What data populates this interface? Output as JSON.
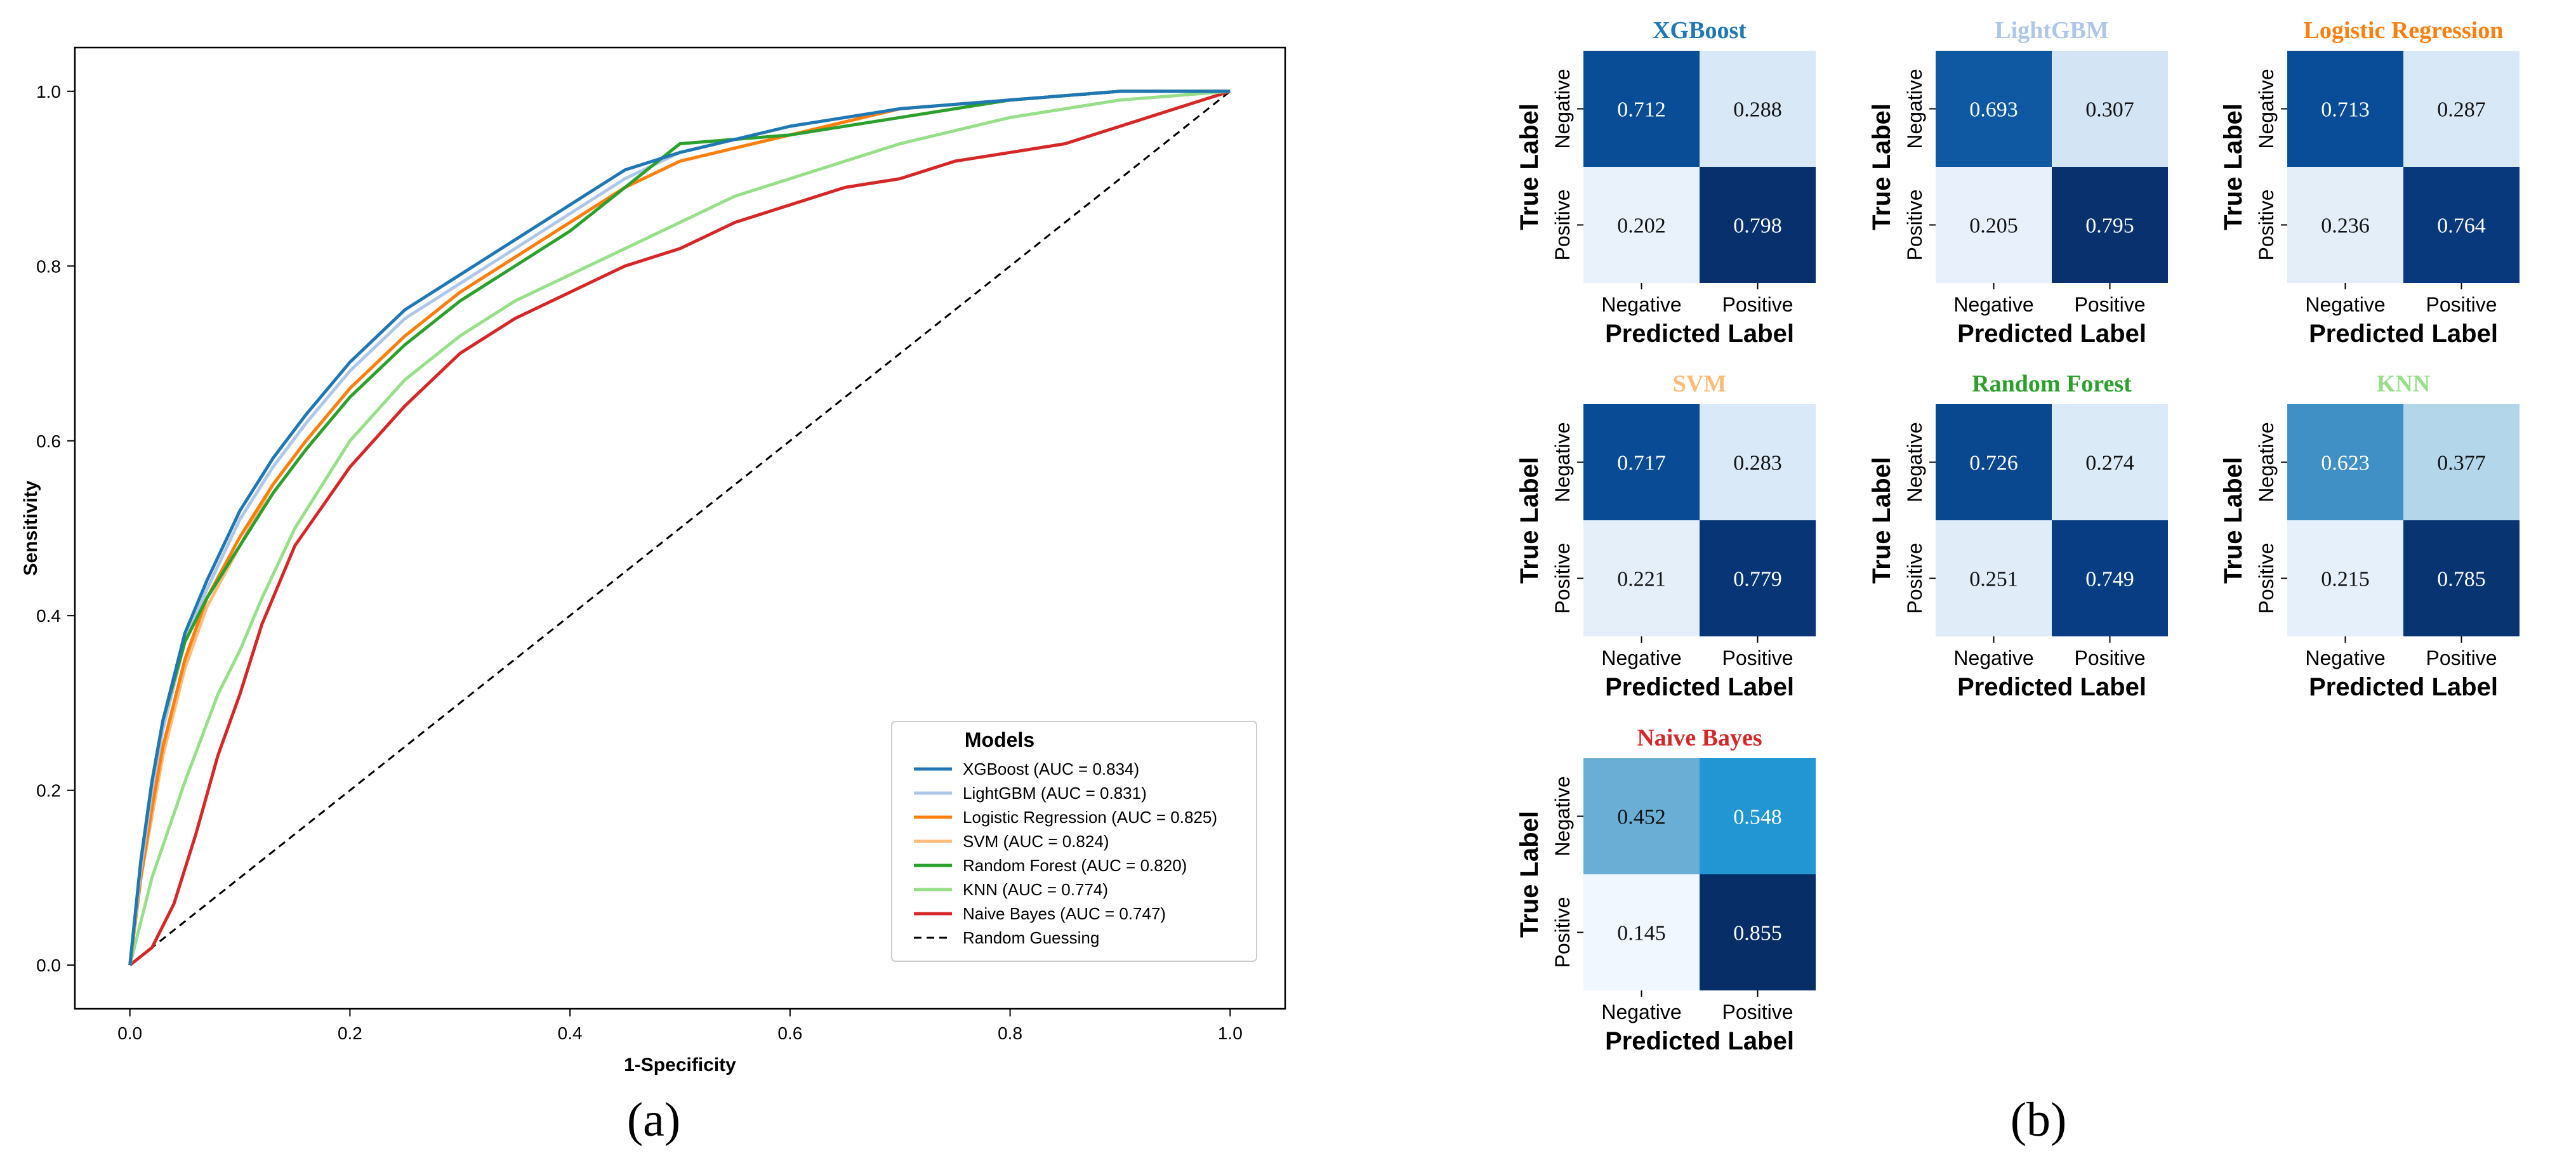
{
  "chart_data": [
    {
      "type": "line",
      "panel_label": "(a)",
      "title": "",
      "xlabel": "1-Specificity",
      "ylabel": "Sensitivity",
      "xlim": [
        -0.05,
        1.05
      ],
      "ylim": [
        -0.05,
        1.05
      ],
      "xticks": [
        "0.0",
        "0.2",
        "0.4",
        "0.6",
        "0.8",
        "1.0"
      ],
      "yticks": [
        "0.0",
        "0.2",
        "0.4",
        "0.6",
        "0.8",
        "1.0"
      ],
      "grid": false,
      "legend": {
        "title": "Models",
        "placement": "lower-right",
        "entries": [
          "XGBoost (AUC = 0.834)",
          "LightGBM (AUC = 0.831)",
          "Logistic Regression (AUC = 0.825)",
          "SVM (AUC = 0.824)",
          "Random Forest (AUC = 0.820)",
          "KNN (AUC = 0.774)",
          "Naive Bayes (AUC = 0.747)",
          "Random Guessing"
        ]
      },
      "series": [
        {
          "name": "XGBoost",
          "color": "#1f77b4",
          "dashed": false,
          "x": [
            0,
            0.01,
            0.02,
            0.03,
            0.05,
            0.07,
            0.1,
            0.13,
            0.16,
            0.2,
            0.25,
            0.3,
            0.35,
            0.4,
            0.45,
            0.5,
            0.6,
            0.7,
            0.8,
            0.9,
            1.0
          ],
          "y": [
            0,
            0.12,
            0.21,
            0.28,
            0.38,
            0.44,
            0.52,
            0.58,
            0.63,
            0.69,
            0.75,
            0.79,
            0.83,
            0.87,
            0.91,
            0.93,
            0.96,
            0.98,
            0.99,
            1.0,
            1.0
          ]
        },
        {
          "name": "LightGBM",
          "color": "#aec7e8",
          "dashed": false,
          "x": [
            0,
            0.01,
            0.02,
            0.03,
            0.05,
            0.07,
            0.1,
            0.13,
            0.16,
            0.2,
            0.25,
            0.3,
            0.35,
            0.4,
            0.45,
            0.5,
            0.6,
            0.7,
            0.8,
            0.9,
            1.0
          ],
          "y": [
            0,
            0.11,
            0.2,
            0.27,
            0.37,
            0.43,
            0.51,
            0.57,
            0.62,
            0.68,
            0.74,
            0.78,
            0.82,
            0.86,
            0.9,
            0.93,
            0.96,
            0.98,
            0.99,
            1.0,
            1.0
          ]
        },
        {
          "name": "Logistic Regression",
          "color": "#ff7f0e",
          "dashed": false,
          "x": [
            0,
            0.01,
            0.02,
            0.03,
            0.05,
            0.07,
            0.1,
            0.13,
            0.16,
            0.2,
            0.25,
            0.3,
            0.35,
            0.4,
            0.45,
            0.5,
            0.6,
            0.7,
            0.8,
            0.9,
            1.0
          ],
          "y": [
            0,
            0.1,
            0.18,
            0.25,
            0.35,
            0.42,
            0.49,
            0.55,
            0.6,
            0.66,
            0.72,
            0.77,
            0.81,
            0.85,
            0.89,
            0.92,
            0.95,
            0.98,
            0.99,
            1.0,
            1.0
          ]
        },
        {
          "name": "SVM",
          "color": "#ffbb78",
          "dashed": false,
          "x": [
            0,
            0.01,
            0.02,
            0.03,
            0.05,
            0.07,
            0.1,
            0.13,
            0.16,
            0.2,
            0.25,
            0.3,
            0.35,
            0.4,
            0.45,
            0.5,
            0.6,
            0.7,
            0.8,
            0.9,
            1.0
          ],
          "y": [
            0,
            0.1,
            0.17,
            0.24,
            0.34,
            0.41,
            0.48,
            0.55,
            0.6,
            0.66,
            0.72,
            0.77,
            0.81,
            0.85,
            0.89,
            0.92,
            0.95,
            0.98,
            0.99,
            1.0,
            1.0
          ]
        },
        {
          "name": "Random Forest",
          "color": "#2ca02c",
          "dashed": false,
          "x": [
            0,
            0.01,
            0.02,
            0.03,
            0.05,
            0.07,
            0.1,
            0.13,
            0.16,
            0.2,
            0.25,
            0.3,
            0.35,
            0.4,
            0.45,
            0.48,
            0.5,
            0.6,
            0.7,
            0.8,
            0.9,
            1.0
          ],
          "y": [
            0,
            0.12,
            0.21,
            0.28,
            0.37,
            0.42,
            0.48,
            0.54,
            0.59,
            0.65,
            0.71,
            0.76,
            0.8,
            0.84,
            0.89,
            0.92,
            0.94,
            0.95,
            0.97,
            0.99,
            1.0,
            1.0
          ]
        },
        {
          "name": "KNN",
          "color": "#98df8a",
          "dashed": false,
          "x": [
            0,
            0.02,
            0.05,
            0.08,
            0.1,
            0.12,
            0.15,
            0.2,
            0.25,
            0.3,
            0.35,
            0.4,
            0.45,
            0.5,
            0.55,
            0.6,
            0.65,
            0.7,
            0.8,
            0.9,
            1.0
          ],
          "y": [
            0,
            0.1,
            0.21,
            0.31,
            0.36,
            0.42,
            0.5,
            0.6,
            0.67,
            0.72,
            0.76,
            0.79,
            0.82,
            0.85,
            0.88,
            0.9,
            0.92,
            0.94,
            0.97,
            0.99,
            1.0
          ]
        },
        {
          "name": "Naive Bayes",
          "color": "#d62728",
          "dashed": false,
          "x": [
            0,
            0.02,
            0.04,
            0.06,
            0.08,
            0.1,
            0.12,
            0.15,
            0.2,
            0.25,
            0.3,
            0.35,
            0.4,
            0.45,
            0.5,
            0.55,
            0.6,
            0.65,
            0.7,
            0.75,
            0.8,
            0.85,
            0.9,
            0.95,
            1.0
          ],
          "y": [
            0,
            0.02,
            0.07,
            0.15,
            0.24,
            0.31,
            0.39,
            0.48,
            0.57,
            0.64,
            0.7,
            0.74,
            0.77,
            0.8,
            0.82,
            0.85,
            0.87,
            0.89,
            0.9,
            0.92,
            0.93,
            0.94,
            0.96,
            0.98,
            1.0
          ]
        },
        {
          "name": "Random Guessing",
          "color": "#000000",
          "dashed": true,
          "x": [
            0,
            1
          ],
          "y": [
            0,
            1
          ]
        }
      ]
    },
    {
      "type": "heatmap",
      "panel_label": "(b)",
      "xlabel": "Predicted Label",
      "ylabel": "True Label",
      "col_labels": [
        "Negative",
        "Positive"
      ],
      "row_labels": [
        "Negative",
        "Positive"
      ],
      "matrices": [
        {
          "title": "XGBoost",
          "title_color": "#1f77b4",
          "values": [
            [
              "0.712",
              "0.288"
            ],
            [
              "0.202",
              "0.798"
            ]
          ]
        },
        {
          "title": "LightGBM",
          "title_color": "#aec7e8",
          "values": [
            [
              "0.693",
              "0.307"
            ],
            [
              "0.205",
              "0.795"
            ]
          ]
        },
        {
          "title": "Logistic Regression",
          "title_color": "#ff7f0e",
          "values": [
            [
              "0.713",
              "0.287"
            ],
            [
              "0.236",
              "0.764"
            ]
          ]
        },
        {
          "title": "SVM",
          "title_color": "#ffbb78",
          "values": [
            [
              "0.717",
              "0.283"
            ],
            [
              "0.221",
              "0.779"
            ]
          ]
        },
        {
          "title": "Random Forest",
          "title_color": "#2ca02c",
          "values": [
            [
              "0.726",
              "0.274"
            ],
            [
              "0.251",
              "0.749"
            ]
          ]
        },
        {
          "title": "KNN",
          "title_color": "#98df8a",
          "values": [
            [
              "0.623",
              "0.377"
            ],
            [
              "0.215",
              "0.785"
            ]
          ]
        },
        {
          "title": "Naive Bayes",
          "title_color": "#d62728",
          "values": [
            [
              "0.452",
              "0.548"
            ],
            [
              "0.145",
              "0.855"
            ]
          ]
        }
      ]
    }
  ]
}
